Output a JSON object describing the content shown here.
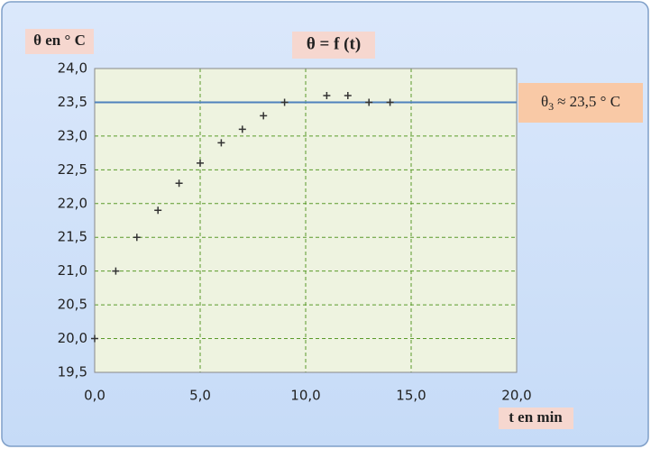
{
  "chart_data": {
    "type": "scatter",
    "title": "θ = f (t)",
    "x_label": "t en min",
    "y_label": "θ en ° C",
    "series": [
      {
        "name": "θ",
        "color": "#333333",
        "x": [
          0,
          1,
          2,
          3,
          4,
          5,
          6,
          7,
          8,
          9,
          11,
          12,
          13,
          14
        ],
        "values": [
          20.0,
          21.0,
          21.5,
          21.9,
          22.3,
          22.6,
          22.9,
          23.1,
          23.3,
          23.5,
          23.6,
          23.6,
          23.5,
          23.5
        ]
      }
    ],
    "hline": {
      "value": 23.5,
      "color": "#4f81bd",
      "label_symbol": "θ",
      "label_subscript": "3",
      "label_text": "≈ 23,5 ° C"
    },
    "xlim": [
      0,
      20
    ],
    "ylim": [
      19.5,
      24
    ],
    "xticks": [
      {
        "value": 0,
        "label": "0,0"
      },
      {
        "value": 5,
        "label": "5,0"
      },
      {
        "value": 10,
        "label": "10,0"
      },
      {
        "value": 15,
        "label": "15,0"
      },
      {
        "value": 20,
        "label": "20,0"
      }
    ],
    "yticks": [
      {
        "value": 19.5,
        "label": "19,5"
      },
      {
        "value": 20,
        "label": "20,0"
      },
      {
        "value": 20.5,
        "label": "20,5"
      },
      {
        "value": 21,
        "label": "21,0"
      },
      {
        "value": 21.5,
        "label": "21,5"
      },
      {
        "value": 22,
        "label": "22,0"
      },
      {
        "value": 22.5,
        "label": "22,5"
      },
      {
        "value": 23,
        "label": "23,0"
      },
      {
        "value": 23.5,
        "label": "23,5"
      },
      {
        "value": 24,
        "label": "24,0"
      }
    ],
    "grid": true
  }
}
